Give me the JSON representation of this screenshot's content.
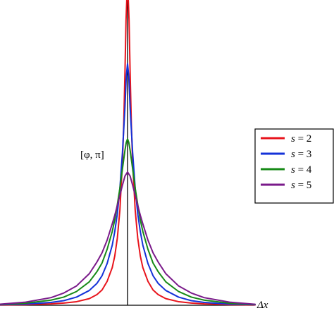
{
  "chart_data": {
    "type": "line",
    "title": "",
    "xlabel": "Δx",
    "ylabel": "[φ, π]",
    "xlim": [
      -5,
      5
    ],
    "ylim": [
      0,
      6
    ],
    "grid": false,
    "legend_position": "right",
    "series": [
      {
        "name": "s = 2",
        "label_symbol": "s",
        "label_value": "2",
        "color": "#e8141c",
        "x": [
          -5,
          -4,
          -3,
          -2.5,
          -2,
          -1.5,
          -1.2,
          -1,
          -0.8,
          -0.6,
          -0.5,
          -0.4,
          -0.3,
          -0.2,
          -0.15,
          -0.1,
          -0.06,
          -0.03,
          0,
          0.03,
          0.06,
          0.1,
          0.15,
          0.2,
          0.3,
          0.4,
          0.5,
          0.6,
          0.8,
          1,
          1.2,
          1.5,
          2,
          2.5,
          3,
          4,
          5
        ],
        "y": [
          0.005,
          0.01,
          0.028,
          0.043,
          0.07,
          0.13,
          0.21,
          0.3,
          0.47,
          0.74,
          0.97,
          1.32,
          1.87,
          2.8,
          3.55,
          4.6,
          5.6,
          6.0,
          6.0,
          6.0,
          5.6,
          4.6,
          3.55,
          2.8,
          1.87,
          1.32,
          0.97,
          0.74,
          0.47,
          0.3,
          0.21,
          0.13,
          0.07,
          0.043,
          0.028,
          0.01,
          0.005
        ]
      },
      {
        "name": "s = 3",
        "label_symbol": "s",
        "label_value": "3",
        "color": "#1432d8",
        "x": [
          -5,
          -4,
          -3,
          -2.5,
          -2,
          -1.5,
          -1.2,
          -1,
          -0.8,
          -0.6,
          -0.5,
          -0.4,
          -0.3,
          -0.2,
          -0.1,
          -0.05,
          0,
          0.05,
          0.1,
          0.2,
          0.3,
          0.4,
          0.5,
          0.6,
          0.8,
          1,
          1.2,
          1.5,
          2,
          2.5,
          3,
          4,
          5
        ],
        "y": [
          0.01,
          0.022,
          0.055,
          0.09,
          0.16,
          0.29,
          0.43,
          0.58,
          0.82,
          1.18,
          1.45,
          1.8,
          2.3,
          3.0,
          3.9,
          4.5,
          4.75,
          4.5,
          3.9,
          3.0,
          2.3,
          1.8,
          1.45,
          1.18,
          0.82,
          0.58,
          0.43,
          0.29,
          0.16,
          0.09,
          0.055,
          0.022,
          0.01
        ]
      },
      {
        "name": "s = 4",
        "label_symbol": "s",
        "label_value": "4",
        "color": "#178a17",
        "x": [
          -5,
          -4,
          -3,
          -2.5,
          -2,
          -1.5,
          -1.2,
          -1,
          -0.8,
          -0.6,
          -0.5,
          -0.4,
          -0.3,
          -0.2,
          -0.1,
          -0.05,
          0,
          0.05,
          0.1,
          0.2,
          0.3,
          0.4,
          0.5,
          0.6,
          0.8,
          1,
          1.2,
          1.5,
          2,
          2.5,
          3,
          4,
          5
        ],
        "y": [
          0.015,
          0.04,
          0.1,
          0.16,
          0.27,
          0.46,
          0.66,
          0.83,
          1.1,
          1.45,
          1.68,
          1.98,
          2.3,
          2.68,
          3.05,
          3.2,
          3.27,
          3.2,
          3.05,
          2.68,
          2.3,
          1.98,
          1.68,
          1.45,
          1.1,
          0.83,
          0.66,
          0.46,
          0.27,
          0.16,
          0.1,
          0.04,
          0.015
        ]
      },
      {
        "name": "s = 5",
        "label_symbol": "s",
        "label_value": "5",
        "color": "#7a1a8a",
        "x": [
          -5,
          -4,
          -3,
          -2.5,
          -2,
          -1.5,
          -1.2,
          -1,
          -0.8,
          -0.6,
          -0.5,
          -0.4,
          -0.3,
          -0.2,
          -0.1,
          0,
          0.1,
          0.2,
          0.3,
          0.4,
          0.5,
          0.6,
          0.8,
          1,
          1.2,
          1.5,
          2,
          2.5,
          3,
          4,
          5
        ],
        "y": [
          0.02,
          0.06,
          0.15,
          0.24,
          0.38,
          0.62,
          0.85,
          1.03,
          1.28,
          1.6,
          1.77,
          1.96,
          2.16,
          2.36,
          2.54,
          2.62,
          2.54,
          2.36,
          2.16,
          1.96,
          1.77,
          1.6,
          1.28,
          1.03,
          0.85,
          0.62,
          0.38,
          0.24,
          0.15,
          0.06,
          0.02
        ]
      }
    ]
  }
}
